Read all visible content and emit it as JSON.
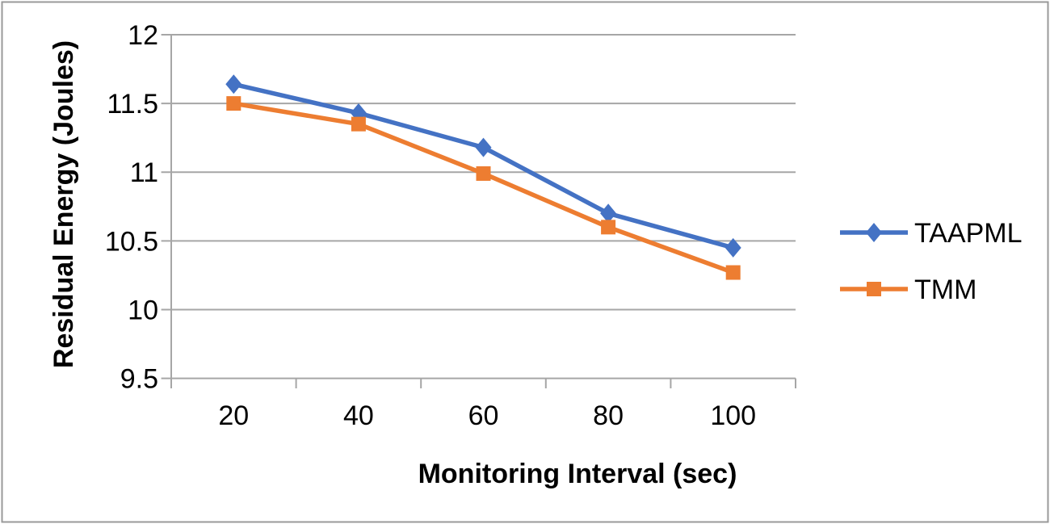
{
  "chart_data": {
    "type": "line",
    "title": "",
    "xlabel": "Monitoring Interval (sec)",
    "ylabel": "Residual Energy (Joules)",
    "x": [
      20,
      40,
      60,
      80,
      100
    ],
    "x_tick_labels": [
      "20",
      "40",
      "60",
      "80",
      "100"
    ],
    "y_ticks": [
      12,
      11.5,
      11,
      10.5,
      10,
      9.5
    ],
    "y_tick_labels": [
      "12",
      "11.5",
      "11",
      "10.5",
      "10",
      "9.5"
    ],
    "ylim": [
      9.5,
      12
    ],
    "grid": true,
    "legend_position": "right",
    "series": [
      {
        "name": "TAAPML",
        "marker": "diamond",
        "color": "#4472C4",
        "values": [
          11.64,
          11.43,
          11.18,
          10.7,
          10.45
        ]
      },
      {
        "name": "TMM",
        "marker": "square",
        "color": "#ED7D31",
        "values": [
          11.5,
          11.35,
          10.99,
          10.6,
          10.27
        ]
      }
    ],
    "colors": {
      "grid": "#a6a6a6",
      "axis": "#a6a6a6",
      "frame": "#999999",
      "text": "#000000",
      "background": "#ffffff"
    }
  }
}
